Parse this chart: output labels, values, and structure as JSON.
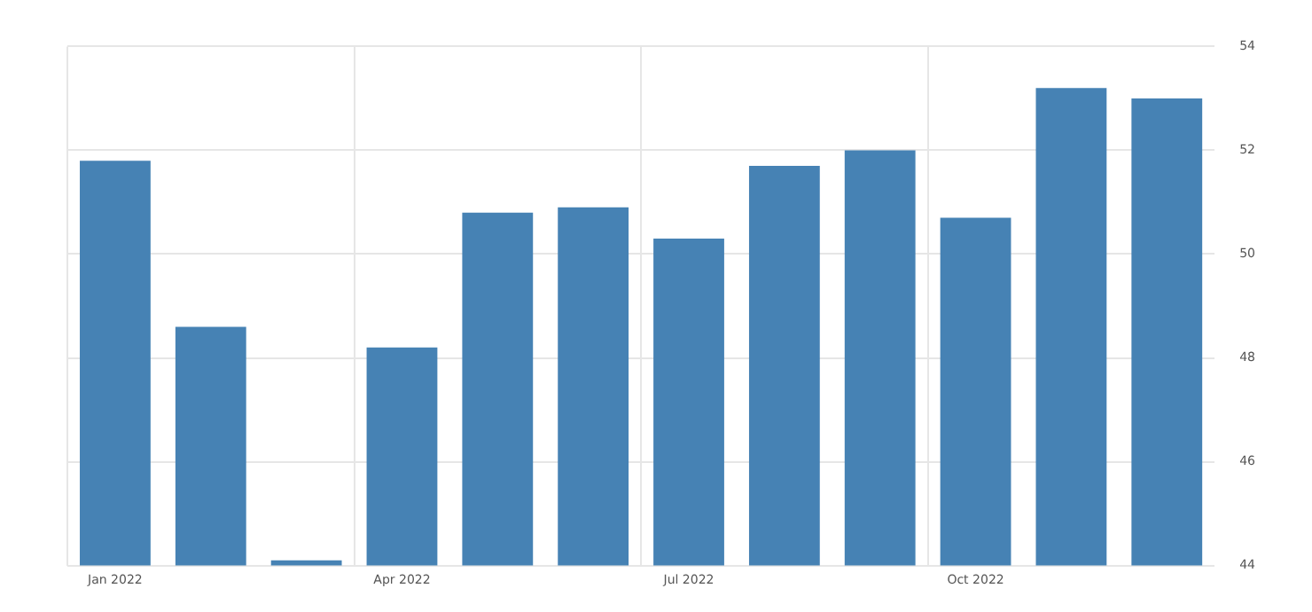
{
  "chart_data": {
    "type": "bar",
    "categories": [
      "Jan 2022",
      null,
      null,
      "Apr 2022",
      null,
      null,
      "Jul 2022",
      null,
      null,
      "Oct 2022",
      null,
      null
    ],
    "values": [
      51.8,
      48.6,
      44.1,
      48.2,
      50.8,
      50.9,
      50.3,
      51.7,
      52.0,
      50.7,
      53.2,
      53.0
    ],
    "color": "#4682b4",
    "ylim": [
      44,
      54
    ],
    "yticks": [
      44,
      46,
      48,
      50,
      52,
      54
    ],
    "grid": true,
    "legend": false
  }
}
